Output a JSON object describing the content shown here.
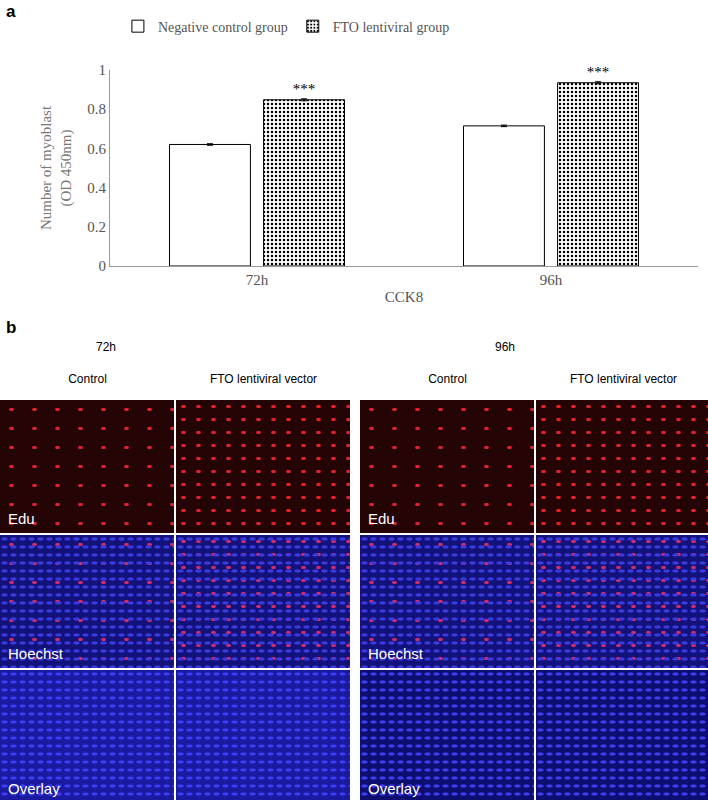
{
  "chart_data": {
    "type": "bar",
    "categories": [
      "72h",
      "96h"
    ],
    "series": [
      {
        "name": "Negative control group",
        "color": "#ffffff",
        "values": [
          0.62,
          0.715
        ],
        "errors": [
          0.004,
          0.004
        ]
      },
      {
        "name": "FTO lentiviral group",
        "color": "#ffffff",
        "marker": "dots",
        "values": [
          0.848,
          0.935
        ],
        "errors": [
          0.005,
          0.005
        ]
      }
    ],
    "x_label": "CCK8",
    "y_label": "Number of myoblast (OD 450nm)",
    "ylim": [
      0,
      1
    ],
    "yticks": [
      0,
      0.2,
      0.4,
      0.6,
      0.8,
      1
    ],
    "grid": false,
    "legend": "top",
    "annotations": [
      {
        "text": "***",
        "x": "72h",
        "series": "FTO lentiviral group"
      },
      {
        "text": "***",
        "x": "96h",
        "series": "FTO lentiviral group"
      }
    ]
  },
  "panel_labels": [
    "a",
    "b"
  ],
  "image_panel": {
    "groups": [
      {
        "title": "72h",
        "columns": [
          "Control",
          "FTO lentiviral vector"
        ]
      },
      {
        "title": "96h",
        "columns": [
          "Control",
          "FTO lentiviral vector"
        ]
      }
    ],
    "rows": [
      "Edu",
      "Hoechst",
      "Overlay"
    ]
  }
}
